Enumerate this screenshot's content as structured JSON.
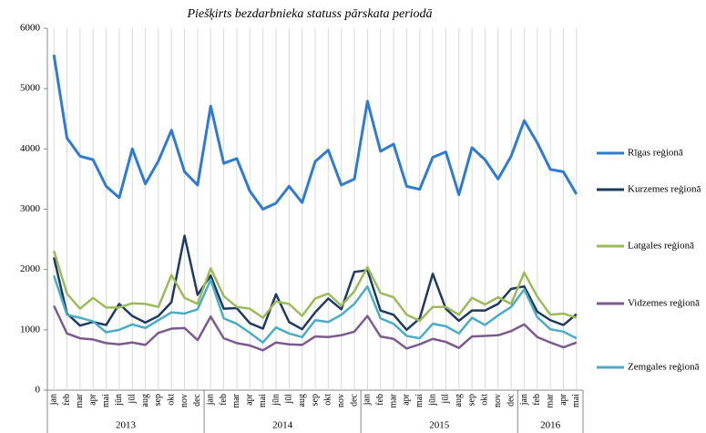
{
  "chart_data": {
    "type": "line",
    "title": "Piešķirts bezdarbnieka statuss pārskata periodā",
    "categories": [
      "jan",
      "feb",
      "mar",
      "apr",
      "mai",
      "jūn",
      "jūl",
      "aug",
      "sep",
      "okt",
      "nov",
      "dec",
      "jan",
      "feb",
      "mar",
      "apr",
      "mai",
      "jūn",
      "jūl",
      "aug",
      "sep",
      "okt",
      "nov",
      "dec",
      "jan",
      "feb",
      "mar",
      "apr",
      "mai",
      "jūn",
      "jūl",
      "aug",
      "sep",
      "okt",
      "nov",
      "dec",
      "jan",
      "feb",
      "mar",
      "apr",
      "mai"
    ],
    "x_groups": [
      "2013",
      "2014",
      "2015",
      "2016"
    ],
    "series": [
      {
        "name": "Rīgas reģionā",
        "color": "#2f7bd1",
        "values": [
          5560,
          4180,
          3880,
          3820,
          3380,
          3190,
          4000,
          3420,
          3800,
          4310,
          3620,
          3400,
          4710,
          3760,
          3840,
          3300,
          3000,
          3100,
          3380,
          3110,
          3790,
          3980,
          3400,
          3500,
          4790,
          3960,
          4080,
          3380,
          3330,
          3860,
          3950,
          3240,
          4020,
          3820,
          3500,
          3880,
          4470,
          4100,
          3660,
          3620,
          3250
        ]
      },
      {
        "name": "Kurzemes reģionā",
        "color": "#1f3a5f",
        "values": [
          2200,
          1270,
          1070,
          1130,
          1080,
          1430,
          1230,
          1120,
          1230,
          1460,
          2560,
          1580,
          1900,
          1350,
          1360,
          1110,
          1020,
          1590,
          1130,
          1010,
          1290,
          1520,
          1340,
          1960,
          1990,
          1320,
          1250,
          1000,
          1190,
          1930,
          1350,
          1150,
          1320,
          1320,
          1430,
          1680,
          1720,
          1300,
          1160,
          1080,
          1260
        ]
      },
      {
        "name": "Latgales reģionā",
        "color": "#9bbb59",
        "values": [
          2310,
          1600,
          1350,
          1530,
          1370,
          1370,
          1440,
          1430,
          1380,
          1910,
          1530,
          1430,
          2020,
          1560,
          1380,
          1350,
          1200,
          1470,
          1430,
          1230,
          1520,
          1600,
          1400,
          1640,
          2040,
          1610,
          1540,
          1250,
          1150,
          1380,
          1380,
          1250,
          1530,
          1420,
          1540,
          1430,
          1950,
          1550,
          1250,
          1270,
          1200
        ]
      },
      {
        "name": "Vidzemes reģionā",
        "color": "#7b5b8e",
        "values": [
          1400,
          940,
          860,
          840,
          780,
          760,
          790,
          750,
          950,
          1020,
          1030,
          830,
          1220,
          860,
          780,
          740,
          660,
          790,
          760,
          750,
          890,
          880,
          910,
          970,
          1230,
          890,
          850,
          690,
          760,
          850,
          800,
          700,
          890,
          900,
          910,
          980,
          1090,
          880,
          790,
          710,
          790
        ]
      },
      {
        "name": "Zemgales reģionā",
        "color": "#4bacc6",
        "values": [
          1900,
          1250,
          1200,
          1140,
          960,
          1000,
          1090,
          1030,
          1160,
          1290,
          1270,
          1340,
          1830,
          1190,
          1100,
          950,
          790,
          1040,
          940,
          880,
          1160,
          1130,
          1250,
          1430,
          1720,
          1190,
          1100,
          900,
          860,
          1100,
          1060,
          940,
          1200,
          1080,
          1240,
          1380,
          1670,
          1210,
          1010,
          970,
          860
        ]
      }
    ],
    "ylim": [
      0,
      6000
    ],
    "yticks": [
      0,
      1000,
      2000,
      3000,
      4000,
      5000,
      6000
    ],
    "grid": "x"
  }
}
